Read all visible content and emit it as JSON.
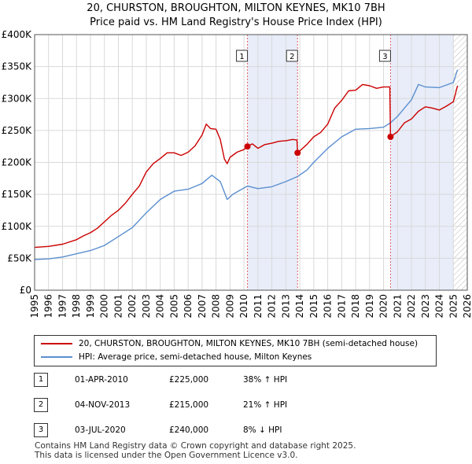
{
  "chart_data": {
    "type": "line",
    "title": "20, CHURSTON, BROUGHTON, MILTON KEYNES, MK10 7BH",
    "subtitle": "Price paid vs. HM Land Registry's House Price Index (HPI)",
    "x_range": [
      1995,
      2026
    ],
    "ylim": [
      0,
      400000
    ],
    "y_ticks": [
      0,
      50000,
      100000,
      150000,
      200000,
      250000,
      300000,
      350000,
      400000
    ],
    "y_tick_labels": [
      "£0",
      "£50K",
      "£100K",
      "£150K",
      "£200K",
      "£250K",
      "£300K",
      "£350K",
      "£400K"
    ],
    "x_ticks": [
      "1995",
      "1996",
      "1997",
      "1998",
      "1999",
      "2000",
      "2001",
      "2002",
      "2003",
      "2004",
      "2005",
      "2006",
      "2007",
      "2008",
      "2009",
      "2010",
      "2011",
      "2012",
      "2013",
      "2014",
      "2015",
      "2016",
      "2017",
      "2018",
      "2019",
      "2020",
      "2021",
      "2022",
      "2023",
      "2024",
      "2025",
      "2026"
    ],
    "grid": true,
    "shaded_periods": [
      [
        2010.25,
        2013.84
      ],
      [
        2020.5,
        2025.0
      ]
    ],
    "future_hatch_start": 2025.0,
    "series": [
      {
        "name": "20, CHURSTON, BROUGHTON, MILTON KEYNES, MK10 7BH (semi-detached house)",
        "color": "#cc0000",
        "points": [
          [
            1995.0,
            67000
          ],
          [
            1996.0,
            68500
          ],
          [
            1997.0,
            72000
          ],
          [
            1998.0,
            79000
          ],
          [
            1998.5,
            85000
          ],
          [
            1999.0,
            90000
          ],
          [
            1999.5,
            97000
          ],
          [
            2000.0,
            107000
          ],
          [
            2000.5,
            117000
          ],
          [
            2001.0,
            125000
          ],
          [
            2001.5,
            136000
          ],
          [
            2002.0,
            150000
          ],
          [
            2002.5,
            163000
          ],
          [
            2003.0,
            185000
          ],
          [
            2003.5,
            198000
          ],
          [
            2004.0,
            206000
          ],
          [
            2004.5,
            215000
          ],
          [
            2005.0,
            215000
          ],
          [
            2005.5,
            211000
          ],
          [
            2006.0,
            216000
          ],
          [
            2006.5,
            226000
          ],
          [
            2007.0,
            243000
          ],
          [
            2007.3,
            260000
          ],
          [
            2007.6,
            253000
          ],
          [
            2008.0,
            252000
          ],
          [
            2008.3,
            236000
          ],
          [
            2008.6,
            205000
          ],
          [
            2008.8,
            198000
          ],
          [
            2009.0,
            208000
          ],
          [
            2009.5,
            216000
          ],
          [
            2010.0,
            220000
          ],
          [
            2010.25,
            225000
          ],
          [
            2010.6,
            229000
          ],
          [
            2011.0,
            222000
          ],
          [
            2011.5,
            228000
          ],
          [
            2012.0,
            230000
          ],
          [
            2012.5,
            233000
          ],
          [
            2013.0,
            234000
          ],
          [
            2013.5,
            236000
          ],
          [
            2013.8,
            235000
          ],
          [
            2013.84,
            215000
          ],
          [
            2014.0,
            218000
          ],
          [
            2014.5,
            228000
          ],
          [
            2015.0,
            240000
          ],
          [
            2015.5,
            247000
          ],
          [
            2016.0,
            260000
          ],
          [
            2016.5,
            285000
          ],
          [
            2017.0,
            297000
          ],
          [
            2017.5,
            312000
          ],
          [
            2018.0,
            313000
          ],
          [
            2018.5,
            322000
          ],
          [
            2019.0,
            320000
          ],
          [
            2019.5,
            316000
          ],
          [
            2020.0,
            318000
          ],
          [
            2020.45,
            318000
          ],
          [
            2020.5,
            240000
          ],
          [
            2021.0,
            248000
          ],
          [
            2021.5,
            262000
          ],
          [
            2022.0,
            268000
          ],
          [
            2022.5,
            280000
          ],
          [
            2023.0,
            287000
          ],
          [
            2023.5,
            285000
          ],
          [
            2024.0,
            282000
          ],
          [
            2024.5,
            288000
          ],
          [
            2025.0,
            295000
          ],
          [
            2025.3,
            320000
          ]
        ]
      },
      {
        "name": "HPI: Average price, semi-detached house, Milton Keynes",
        "color": "#5b8fd0",
        "points": [
          [
            1995.0,
            48000
          ],
          [
            1996.0,
            49000
          ],
          [
            1997.0,
            52000
          ],
          [
            1998.0,
            57000
          ],
          [
            1999.0,
            62000
          ],
          [
            2000.0,
            70000
          ],
          [
            2001.0,
            84000
          ],
          [
            2002.0,
            98000
          ],
          [
            2003.0,
            121000
          ],
          [
            2004.0,
            142000
          ],
          [
            2005.0,
            155000
          ],
          [
            2006.0,
            158000
          ],
          [
            2007.0,
            167000
          ],
          [
            2007.7,
            180000
          ],
          [
            2008.3,
            170000
          ],
          [
            2008.8,
            142000
          ],
          [
            2009.2,
            150000
          ],
          [
            2010.0,
            160000
          ],
          [
            2010.25,
            163000
          ],
          [
            2011.0,
            159000
          ],
          [
            2012.0,
            162000
          ],
          [
            2013.0,
            170000
          ],
          [
            2013.84,
            178000
          ],
          [
            2014.5,
            188000
          ],
          [
            2015.0,
            200000
          ],
          [
            2016.0,
            222000
          ],
          [
            2017.0,
            240000
          ],
          [
            2018.0,
            252000
          ],
          [
            2019.0,
            253000
          ],
          [
            2020.0,
            255000
          ],
          [
            2020.5,
            262000
          ],
          [
            2021.0,
            272000
          ],
          [
            2022.0,
            298000
          ],
          [
            2022.5,
            322000
          ],
          [
            2023.0,
            318000
          ],
          [
            2024.0,
            317000
          ],
          [
            2025.0,
            325000
          ],
          [
            2025.3,
            345000
          ]
        ]
      }
    ],
    "sales": [
      {
        "n": "1",
        "t": 2010.25,
        "price": 225000
      },
      {
        "n": "2",
        "t": 2013.84,
        "price": 215000
      },
      {
        "n": "3",
        "t": 2020.5,
        "price": 240000
      }
    ]
  },
  "legend": {
    "property": "20, CHURSTON, BROUGHTON, MILTON KEYNES, MK10 7BH (semi-detached house)",
    "hpi": "HPI: Average price, semi-detached house, Milton Keynes"
  },
  "sales_table": [
    {
      "num": "1",
      "date": "01-APR-2010",
      "price": "£225,000",
      "hpi": "38% ↑ HPI"
    },
    {
      "num": "2",
      "date": "04-NOV-2013",
      "price": "£215,000",
      "hpi": "21% ↑ HPI"
    },
    {
      "num": "3",
      "date": "03-JUL-2020",
      "price": "£240,000",
      "hpi": "8% ↓ HPI"
    }
  ],
  "footer": {
    "line1": "Contains HM Land Registry data © Crown copyright and database right 2025.",
    "line2": "This data is licensed under the Open Government Licence v3.0."
  }
}
